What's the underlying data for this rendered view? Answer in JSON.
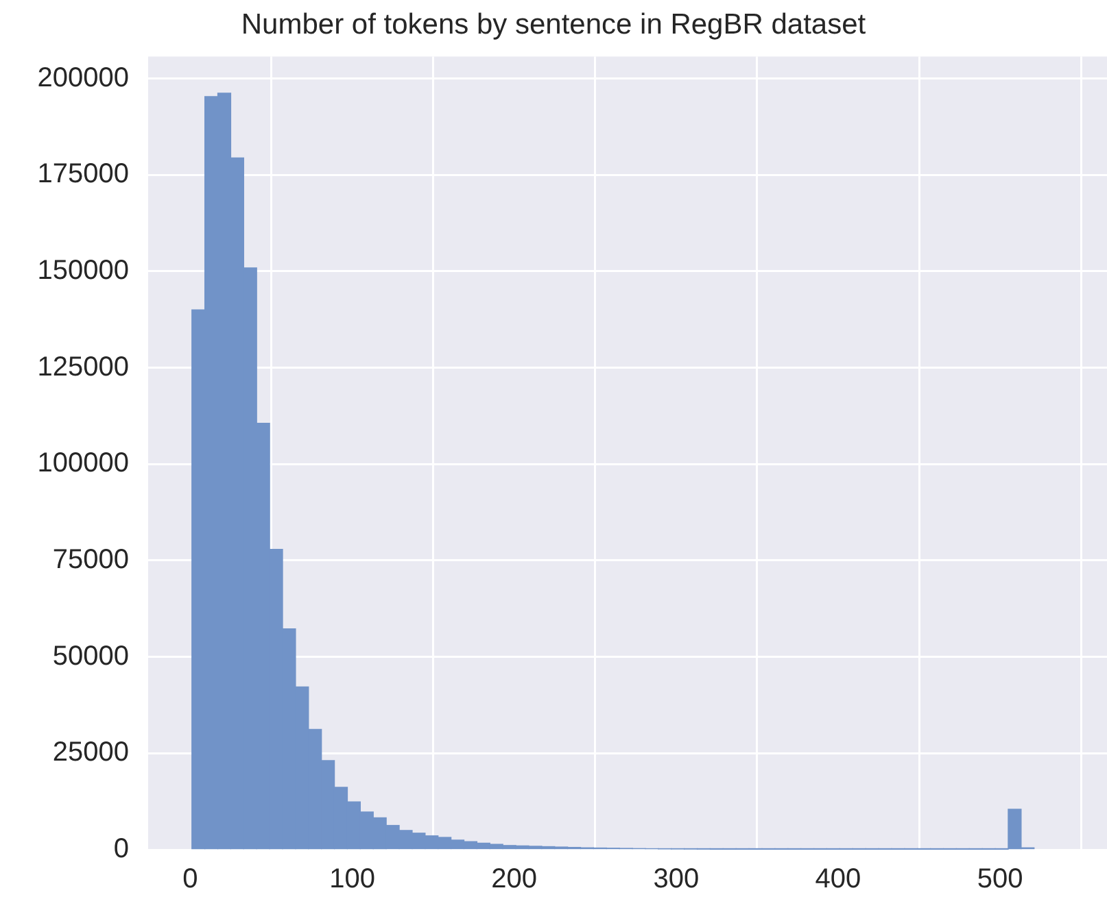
{
  "chart_data": {
    "type": "histogram",
    "title": "Number of tokens by sentence in RegBR dataset",
    "bins": [
      1,
      9,
      17,
      25,
      33,
      41,
      49,
      57,
      65,
      73,
      81,
      89,
      97,
      105,
      113,
      121,
      129,
      137,
      145,
      153,
      161,
      169,
      177,
      185,
      193,
      201,
      209,
      217,
      225,
      233,
      241,
      249,
      257,
      265,
      273,
      281,
      289,
      297,
      305,
      313,
      321,
      329,
      337,
      345,
      353,
      361,
      369,
      377,
      385,
      393,
      401,
      409,
      417,
      425,
      433,
      441,
      449,
      457,
      465,
      473,
      481,
      489,
      497,
      505,
      513,
      521
    ],
    "values": [
      140000,
      195300,
      196200,
      179400,
      150900,
      110600,
      77900,
      57300,
      42200,
      31200,
      23100,
      16200,
      12400,
      9800,
      8300,
      6300,
      5000,
      4300,
      3600,
      3200,
      2500,
      2100,
      1700,
      1400,
      1100,
      1000,
      900,
      800,
      700,
      600,
      500,
      450,
      400,
      350,
      300,
      250,
      200,
      180,
      160,
      140,
      120,
      100,
      90,
      80,
      70,
      60,
      50,
      45,
      40,
      35,
      30,
      25,
      20,
      20,
      15,
      15,
      10,
      10,
      10,
      10,
      10,
      10,
      10,
      10500,
      500
    ],
    "color": "#7193c8",
    "xlim": [
      -26,
      566
    ],
    "xticks": [
      0,
      100,
      200,
      300,
      400,
      500
    ],
    "ylim": [
      0,
      205700
    ],
    "yticks": [
      0,
      25000,
      50000,
      75000,
      100000,
      125000,
      150000,
      175000,
      200000
    ],
    "grid": true
  }
}
